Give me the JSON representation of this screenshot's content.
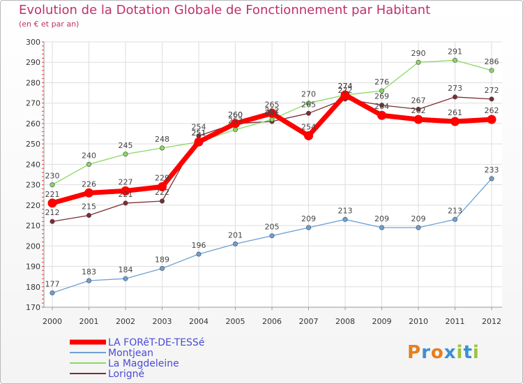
{
  "chart_data": {
    "type": "line",
    "title": "Evolution de la Dotation Globale de Fonctionnement par Habitant",
    "subtitle": "(en € et par an)",
    "categories": [
      "2000",
      "2001",
      "2002",
      "2003",
      "2004",
      "2005",
      "2006",
      "2007",
      "2008",
      "2009",
      "2010",
      "2011",
      "2012"
    ],
    "ylim": [
      170,
      300
    ],
    "yticks": [
      170,
      180,
      190,
      200,
      210,
      220,
      230,
      240,
      250,
      260,
      270,
      280,
      290,
      300
    ],
    "grid": true,
    "series": [
      {
        "name": "LA FORêT-DE-TESSé",
        "color": "#ff0000",
        "values": [
          221,
          226,
          227,
          229,
          251,
          260,
          265,
          254,
          274,
          264,
          262,
          261,
          262
        ]
      },
      {
        "name": "Montjean",
        "color": "#6ea0d4",
        "values": [
          177,
          183,
          184,
          189,
          196,
          201,
          205,
          209,
          213,
          209,
          209,
          213,
          233
        ]
      },
      {
        "name": "La Magdeleine",
        "color": "#88d860",
        "values": [
          230,
          240,
          245,
          248,
          251,
          257,
          262,
          270,
          274,
          276,
          290,
          291,
          286
        ]
      },
      {
        "name": "Lorigné",
        "color": "#7a2e34",
        "values": [
          212,
          215,
          221,
          222,
          254,
          260,
          261,
          265,
          272,
          269,
          267,
          273,
          272
        ]
      }
    ]
  },
  "brand": {
    "letters": [
      "P",
      "r",
      "o",
      "x",
      "i",
      "t",
      "i"
    ],
    "colors": [
      "#e87e1c",
      "#3b8fd6",
      "#e87e1c",
      "#3b8fd6",
      "#9ac43c",
      "#3b8fd6",
      "#9ac43c"
    ]
  }
}
